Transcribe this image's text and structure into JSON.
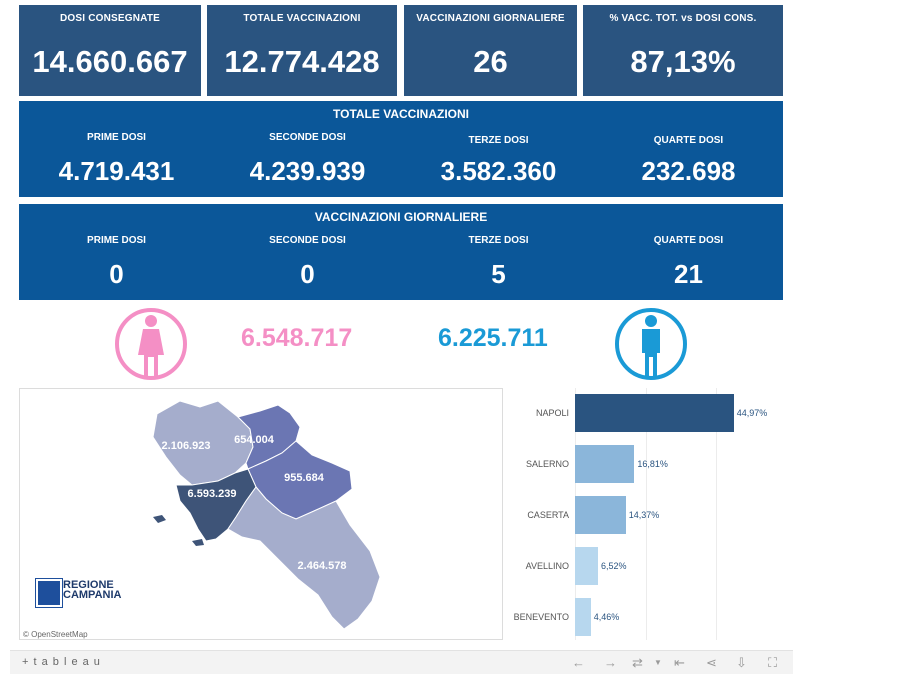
{
  "kpis": [
    {
      "label": "DOSI  CONSEGNATE",
      "value": "14.660.667"
    },
    {
      "label": "TOTALE VACCINAZIONI",
      "value": "12.774.428"
    },
    {
      "label": "VACCINAZIONI GIORNALIERE",
      "value": "26"
    },
    {
      "label": "% VACC. TOT. vs DOSI CONS.",
      "value": "87,13%"
    }
  ],
  "totale": {
    "title": "TOTALE VACCINAZIONI",
    "cols": [
      {
        "label": "PRIME DOSI",
        "value": "4.719.431"
      },
      {
        "label": "SECONDE DOSI",
        "value": "4.239.939"
      },
      {
        "label": "TERZE DOSI",
        "value": "3.582.360"
      },
      {
        "label": "QUARTE DOSI",
        "value": "232.698"
      }
    ]
  },
  "giornaliere": {
    "title": "VACCINAZIONI GIORNALIERE",
    "cols": [
      {
        "label": "PRIME DOSI",
        "value": "0"
      },
      {
        "label": "SECONDE DOSI",
        "value": "0"
      },
      {
        "label": "TERZE DOSI",
        "value": "5"
      },
      {
        "label": "QUARTE DOSI",
        "value": "21"
      }
    ]
  },
  "gender": {
    "female_value": "6.548.717",
    "male_value": "6.225.711",
    "female_color": "#f48fc5",
    "male_color": "#1a9ad6"
  },
  "map": {
    "labels": {
      "caserta": "2.106.923",
      "benevento": "654.004",
      "avellino": "955.684",
      "napoli": "6.593.239",
      "salerno": "2.464.578"
    },
    "logo_line1": "REGIONE",
    "logo_line2": "CAMPANIA",
    "attribution": "© OpenStreetMap"
  },
  "chart_data": {
    "type": "bar",
    "orientation": "horizontal",
    "categories": [
      "NAPOLI",
      "SALERNO",
      "CASERTA",
      "AVELLINO",
      "BENEVENTO"
    ],
    "values": [
      44.97,
      16.81,
      14.37,
      6.52,
      4.46
    ],
    "value_labels": [
      "44,97%",
      "16,81%",
      "14,37%",
      "6,52%",
      "4,46%"
    ],
    "colors": [
      "#2a5480",
      "#8bb6da",
      "#8bb6da",
      "#b7d7ee",
      "#b7d7ee"
    ],
    "xlim": [
      0,
      50
    ],
    "grid": true
  },
  "footer": {
    "brand": "+ t a b l e a u",
    "icons": [
      "undo-icon",
      "redo-icon",
      "revert-icon",
      "reset-icon",
      "share-icon",
      "download-icon",
      "fullscreen-icon"
    ]
  }
}
